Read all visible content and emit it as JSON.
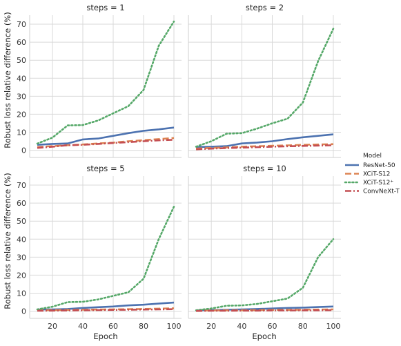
{
  "chart_data": {
    "type": "line",
    "xlabel": "Epoch",
    "ylabel": "Robust loss relative difference (%)",
    "xlim": [
      5,
      105
    ],
    "ylim": [
      -4,
      75
    ],
    "xticks": [
      20,
      40,
      60,
      80,
      100
    ],
    "yticks": [
      0,
      10,
      20,
      30,
      40,
      50,
      60,
      70
    ],
    "grid": true,
    "legend": {
      "title": "Model",
      "placement": "right",
      "entries": [
        "ResNet-50",
        "XCiT-S12",
        "XCiT-S12⁺",
        "ConvNeXt-T"
      ]
    },
    "x": [
      10,
      20,
      30,
      40,
      50,
      60,
      70,
      80,
      90,
      100
    ],
    "series_styles": [
      {
        "color": "#4c72b0",
        "dash": "solid"
      },
      {
        "color": "#dd8452",
        "dash": "dashed"
      },
      {
        "color": "#55a868",
        "dash": "dotted"
      },
      {
        "color": "#c44e52",
        "dash": "dashdot"
      }
    ],
    "panels": [
      {
        "title": "steps = 1",
        "series": [
          {
            "name": "ResNet-50",
            "values": [
              3.0,
              3.5,
              3.8,
              6.0,
              6.5,
              8.0,
              9.5,
              10.8,
              11.6,
              12.6
            ]
          },
          {
            "name": "XCiT-S12",
            "values": [
              1.8,
              2.3,
              2.8,
              3.2,
              3.8,
              4.2,
              5.0,
              5.6,
              6.2,
              6.8
            ]
          },
          {
            "name": "XCiT-S12⁺",
            "values": [
              3.7,
              7.0,
              13.8,
              14.0,
              16.5,
              20.5,
              24.5,
              33.5,
              58.0,
              71.5
            ]
          },
          {
            "name": "ConvNeXt-T",
            "values": [
              1.3,
              2.0,
              2.8,
              3.0,
              3.5,
              4.0,
              4.5,
              5.0,
              5.5,
              5.8
            ]
          }
        ]
      },
      {
        "title": "steps = 2",
        "series": [
          {
            "name": "ResNet-50",
            "values": [
              1.8,
              2.0,
              2.3,
              3.8,
              4.3,
              5.0,
              6.2,
              7.2,
              8.0,
              8.8
            ]
          },
          {
            "name": "XCiT-S12",
            "values": [
              0.9,
              1.3,
              1.6,
              2.0,
              2.2,
              2.5,
              2.7,
              3.0,
              3.2,
              3.4
            ]
          },
          {
            "name": "XCiT-S12⁺",
            "values": [
              2.0,
              5.0,
              9.2,
              9.5,
              12.0,
              15.0,
              17.5,
              26.5,
              49.5,
              67.5
            ]
          },
          {
            "name": "ConvNeXt-T",
            "values": [
              0.5,
              0.9,
              1.2,
              1.5,
              1.7,
              2.0,
              2.2,
              2.4,
              2.6,
              2.8
            ]
          }
        ]
      },
      {
        "title": "steps = 5",
        "series": [
          {
            "name": "ResNet-50",
            "values": [
              0.9,
              1.0,
              1.2,
              1.8,
              2.2,
              2.6,
              3.2,
              3.6,
              4.2,
              4.8
            ]
          },
          {
            "name": "XCiT-S12",
            "values": [
              0.4,
              0.6,
              0.7,
              0.8,
              0.9,
              1.0,
              1.1,
              1.2,
              1.4,
              1.6
            ]
          },
          {
            "name": "XCiT-S12⁺",
            "values": [
              1.0,
              2.5,
              5.0,
              5.2,
              6.5,
              8.5,
              10.5,
              18.0,
              40.0,
              58.0
            ]
          },
          {
            "name": "ConvNeXt-T",
            "values": [
              0.2,
              0.3,
              0.4,
              0.5,
              0.6,
              0.7,
              0.8,
              0.9,
              1.0,
              1.1
            ]
          }
        ]
      },
      {
        "title": "steps = 10",
        "series": [
          {
            "name": "ResNet-50",
            "values": [
              0.5,
              0.6,
              0.8,
              1.0,
              1.2,
              1.5,
              1.8,
              2.0,
              2.3,
              2.6
            ]
          },
          {
            "name": "XCiT-S12",
            "values": [
              0.3,
              0.4,
              0.5,
              0.5,
              0.6,
              0.7,
              0.7,
              0.8,
              0.9,
              1.0
            ]
          },
          {
            "name": "XCiT-S12⁺",
            "values": [
              0.5,
              1.5,
              3.0,
              3.2,
              4.0,
              5.5,
              7.0,
              13.0,
              30.0,
              40.0
            ]
          },
          {
            "name": "ConvNeXt-T",
            "values": [
              0.1,
              0.2,
              0.2,
              0.3,
              0.3,
              0.4,
              0.4,
              0.5,
              0.5,
              0.6
            ]
          }
        ]
      }
    ]
  }
}
